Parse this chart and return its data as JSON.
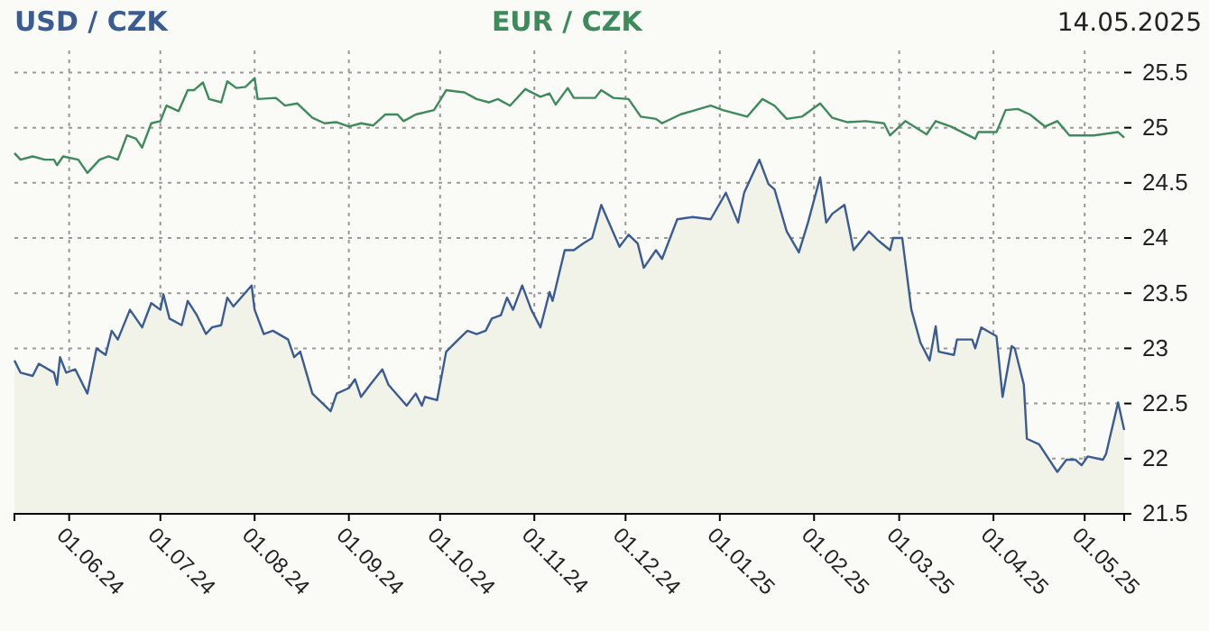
{
  "chart_data": {
    "type": "line",
    "legend": "top",
    "grid": true,
    "line_style": "solid",
    "annotations": [
      "14.05.2025"
    ],
    "xlim": [
      "2024-05-14",
      "2025-05-14"
    ],
    "xticks": [
      {
        "value": "2024-06-01",
        "label": "01.06.24"
      },
      {
        "value": "2024-07-01",
        "label": "01.07.24"
      },
      {
        "value": "2024-08-01",
        "label": "01.08.24"
      },
      {
        "value": "2024-09-01",
        "label": "01.09.24"
      },
      {
        "value": "2024-10-01",
        "label": "01.10.24"
      },
      {
        "value": "2024-11-01",
        "label": "01.11.24"
      },
      {
        "value": "2024-12-01",
        "label": "01.12.24"
      },
      {
        "value": "2025-01-01",
        "label": "01.01.25"
      },
      {
        "value": "2025-02-01",
        "label": "01.02.25"
      },
      {
        "value": "2025-03-01",
        "label": "01.03.25"
      },
      {
        "value": "2025-04-01",
        "label": "01.04.25"
      },
      {
        "value": "2025-05-01",
        "label": "01.05.25"
      }
    ],
    "ylim": [
      21.5,
      25.7
    ],
    "yticks": [
      21.5,
      22,
      22.5,
      23,
      23.5,
      24,
      24.5,
      25,
      25.5
    ],
    "series": [
      {
        "name": "USD / CZK",
        "type": "area",
        "color": "#3b5b93",
        "x": [
          "2024-05-14",
          "2024-05-16",
          "2024-05-20",
          "2024-05-22",
          "2024-05-27",
          "2024-05-28",
          "2024-05-29",
          "2024-05-31",
          "2024-06-03",
          "2024-06-07",
          "2024-06-10",
          "2024-06-13",
          "2024-06-15",
          "2024-06-17",
          "2024-06-21",
          "2024-06-25",
          "2024-06-28",
          "2024-07-01",
          "2024-07-02",
          "2024-07-04",
          "2024-07-08",
          "2024-07-10",
          "2024-07-13",
          "2024-07-16",
          "2024-07-18",
          "2024-07-21",
          "2024-07-23",
          "2024-07-25",
          "2024-07-31",
          "2024-08-01",
          "2024-08-04",
          "2024-08-07",
          "2024-08-12",
          "2024-08-14",
          "2024-08-16",
          "2024-08-20",
          "2024-08-26",
          "2024-08-28",
          "2024-09-01",
          "2024-09-03",
          "2024-09-05",
          "2024-09-08",
          "2024-09-12",
          "2024-09-14",
          "2024-09-20",
          "2024-09-23",
          "2024-09-25",
          "2024-09-26",
          "2024-09-30",
          "2024-10-03",
          "2024-10-07",
          "2024-10-10",
          "2024-10-13",
          "2024-10-16",
          "2024-10-18",
          "2024-10-21",
          "2024-10-23",
          "2024-10-25",
          "2024-10-28",
          "2024-10-31",
          "2024-11-03",
          "2024-11-06",
          "2024-11-07",
          "2024-11-11",
          "2024-11-14",
          "2024-11-17",
          "2024-11-20",
          "2024-11-23",
          "2024-11-29",
          "2024-12-02",
          "2024-12-05",
          "2024-12-07",
          "2024-12-11",
          "2024-12-13",
          "2024-12-18",
          "2024-12-23",
          "2024-12-29",
          "2025-01-03",
          "2025-01-07",
          "2025-01-09",
          "2025-01-14",
          "2025-01-17",
          "2025-01-19",
          "2025-01-23",
          "2025-01-27",
          "2025-01-30",
          "2025-02-03",
          "2025-02-05",
          "2025-02-07",
          "2025-02-11",
          "2025-02-14",
          "2025-02-19",
          "2025-02-22",
          "2025-02-26",
          "2025-02-27",
          "2025-03-02",
          "2025-03-05",
          "2025-03-08",
          "2025-03-11",
          "2025-03-13",
          "2025-03-14",
          "2025-03-19",
          "2025-03-20",
          "2025-03-25",
          "2025-03-26",
          "2025-03-28",
          "2025-04-02",
          "2025-04-04",
          "2025-04-07",
          "2025-04-08",
          "2025-04-11",
          "2025-04-12",
          "2025-04-16",
          "2025-04-22",
          "2025-04-25",
          "2025-04-28",
          "2025-04-30",
          "2025-05-02",
          "2025-05-07",
          "2025-05-08",
          "2025-05-12",
          "2025-05-14"
        ],
        "values": [
          22.89,
          22.78,
          22.75,
          22.86,
          22.78,
          22.67,
          22.92,
          22.78,
          22.81,
          22.59,
          23.0,
          22.94,
          23.16,
          23.08,
          23.35,
          23.19,
          23.41,
          23.35,
          23.49,
          23.27,
          23.21,
          23.43,
          23.3,
          23.13,
          23.19,
          23.21,
          23.46,
          23.38,
          23.57,
          23.35,
          23.13,
          23.16,
          23.08,
          22.92,
          22.97,
          22.59,
          22.43,
          22.59,
          22.64,
          22.72,
          22.56,
          22.67,
          22.81,
          22.67,
          22.48,
          22.59,
          22.48,
          22.56,
          22.53,
          22.97,
          23.08,
          23.16,
          23.13,
          23.16,
          23.27,
          23.3,
          23.46,
          23.35,
          23.57,
          23.35,
          23.19,
          23.51,
          23.43,
          23.89,
          23.89,
          23.95,
          24.0,
          24.3,
          23.92,
          24.03,
          23.95,
          23.73,
          23.89,
          23.81,
          24.17,
          24.19,
          24.17,
          24.41,
          24.14,
          24.41,
          24.71,
          24.49,
          24.44,
          24.06,
          23.87,
          24.14,
          24.55,
          24.14,
          24.22,
          24.3,
          23.89,
          24.06,
          23.98,
          23.89,
          24.0,
          24.0,
          23.35,
          23.05,
          22.89,
          23.2,
          22.97,
          22.94,
          23.08,
          23.08,
          23.0,
          23.19,
          23.11,
          22.56,
          23.02,
          23.0,
          22.67,
          22.18,
          22.13,
          21.88,
          21.99,
          21.99,
          21.94,
          22.02,
          21.99,
          22.04,
          22.51,
          22.26
        ]
      },
      {
        "name": "EUR / CZK",
        "type": "line",
        "color": "#3e8a5c",
        "x": [
          "2024-05-14",
          "2024-05-16",
          "2024-05-20",
          "2024-05-24",
          "2024-05-27",
          "2024-05-28",
          "2024-05-30",
          "2024-06-04",
          "2024-06-07",
          "2024-06-11",
          "2024-06-14",
          "2024-06-17",
          "2024-06-20",
          "2024-06-23",
          "2024-06-25",
          "2024-06-28",
          "2024-07-01",
          "2024-07-03",
          "2024-07-07",
          "2024-07-10",
          "2024-07-12",
          "2024-07-15",
          "2024-07-17",
          "2024-07-21",
          "2024-07-23",
          "2024-07-26",
          "2024-07-29",
          "2024-08-01",
          "2024-08-02",
          "2024-08-08",
          "2024-08-11",
          "2024-08-15",
          "2024-08-20",
          "2024-08-24",
          "2024-08-28",
          "2024-09-01",
          "2024-09-05",
          "2024-09-09",
          "2024-09-13",
          "2024-09-17",
          "2024-09-19",
          "2024-09-23",
          "2024-09-29",
          "2024-10-03",
          "2024-10-09",
          "2024-10-13",
          "2024-10-17",
          "2024-10-20",
          "2024-10-24",
          "2024-10-29",
          "2024-11-03",
          "2024-11-06",
          "2024-11-08",
          "2024-11-12",
          "2024-11-14",
          "2024-11-21",
          "2024-11-23",
          "2024-11-27",
          "2024-12-02",
          "2024-12-06",
          "2024-12-11",
          "2024-12-13",
          "2024-12-19",
          "2024-12-29",
          "2025-01-02",
          "2025-01-10",
          "2025-01-15",
          "2025-01-19",
          "2025-01-23",
          "2025-01-28",
          "2025-02-03",
          "2025-02-07",
          "2025-02-12",
          "2025-02-18",
          "2025-02-24",
          "2025-02-26",
          "2025-03-03",
          "2025-03-10",
          "2025-03-13",
          "2025-03-18",
          "2025-03-26",
          "2025-03-27",
          "2025-04-02",
          "2025-04-05",
          "2025-04-09",
          "2025-04-13",
          "2025-04-18",
          "2025-04-22",
          "2025-04-26",
          "2025-05-04",
          "2025-05-12",
          "2025-05-14"
        ],
        "values": [
          24.77,
          24.71,
          24.74,
          24.71,
          24.71,
          24.66,
          24.74,
          24.71,
          24.59,
          24.71,
          24.74,
          24.71,
          24.93,
          24.9,
          24.82,
          25.04,
          25.06,
          25.2,
          25.15,
          25.34,
          25.34,
          25.41,
          25.26,
          25.23,
          25.42,
          25.36,
          25.37,
          25.45,
          25.26,
          25.27,
          25.2,
          25.22,
          25.09,
          25.04,
          25.05,
          25.01,
          25.04,
          25.02,
          25.12,
          25.12,
          25.06,
          25.12,
          25.16,
          25.34,
          25.32,
          25.26,
          25.23,
          25.26,
          25.2,
          25.35,
          25.28,
          25.31,
          25.21,
          25.36,
          25.27,
          25.27,
          25.34,
          25.27,
          25.26,
          25.1,
          25.08,
          25.04,
          25.12,
          25.2,
          25.16,
          25.1,
          25.26,
          25.2,
          25.08,
          25.1,
          25.22,
          25.09,
          25.05,
          25.06,
          25.04,
          24.93,
          25.06,
          24.94,
          25.06,
          25.01,
          24.9,
          24.96,
          24.96,
          25.16,
          25.17,
          25.12,
          25.01,
          25.06,
          24.93,
          24.93,
          24.96,
          24.91
        ]
      }
    ]
  }
}
